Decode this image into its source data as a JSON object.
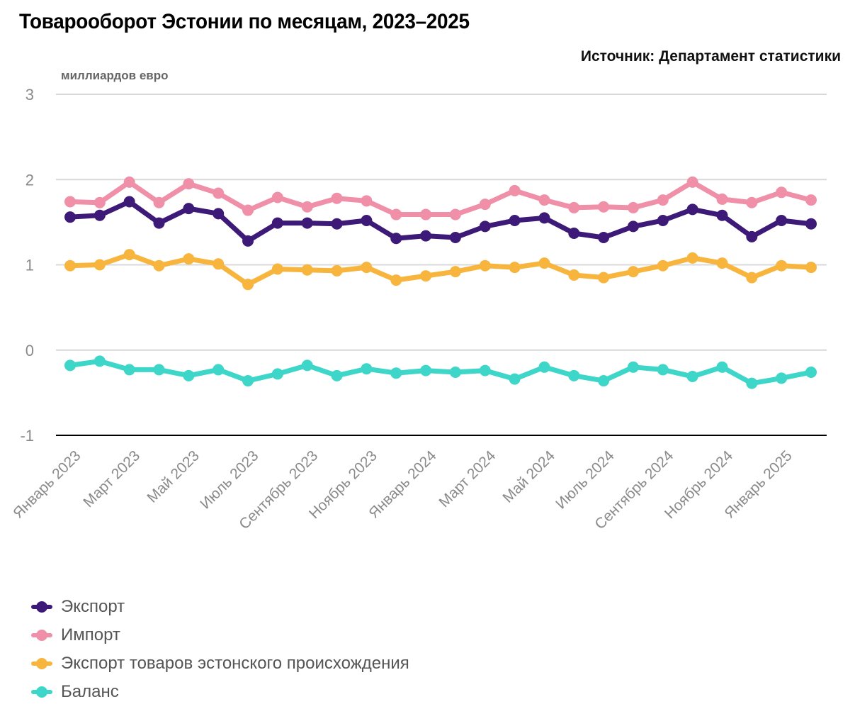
{
  "header": {
    "title": "Товарооборот Эстонии по месяцам, 2023–2025",
    "source": "Источник: Департамент статистики",
    "unit_label": "миллиардов евро"
  },
  "chart_data": {
    "type": "line",
    "title": "Товарооборот Эстонии по месяцам, 2023–2025",
    "subtitle": "Источник: Департамент статистики",
    "xlabel": "",
    "ylabel": "миллиардов евро",
    "ylim": [
      -1,
      3
    ],
    "yticks": [
      "3",
      "2",
      "1",
      "0",
      "-1"
    ],
    "ytick_values": [
      3,
      2,
      1,
      0,
      -1
    ],
    "grid": true,
    "legend_position": "bottom-left",
    "x": [
      "Январь 2023",
      "Февраль 2023",
      "Март 2023",
      "Апрель 2023",
      "Май 2023",
      "Июнь 2023",
      "Июль 2023",
      "Август 2023",
      "Сентябрь 2023",
      "Октябрь 2023",
      "Ноябрь 2023",
      "Декабрь 2023",
      "Январь 2024",
      "Февраль 2024",
      "Март 2024",
      "Апрель 2024",
      "Май 2024",
      "Июнь 2024",
      "Июль 2024",
      "Август 2024",
      "Сентябрь 2024",
      "Октябрь 2024",
      "Ноябрь 2024",
      "Декабрь 2024",
      "Январь 2025",
      "Февраль 2025"
    ],
    "xtick_labels": [
      {
        "index": 0,
        "label": "Январь 2023"
      },
      {
        "index": 2,
        "label": "Март 2023"
      },
      {
        "index": 4,
        "label": "Май 2023"
      },
      {
        "index": 6,
        "label": "Июль 2023"
      },
      {
        "index": 8,
        "label": "Сентябрь 2023"
      },
      {
        "index": 10,
        "label": "Ноябрь 2023"
      },
      {
        "index": 12,
        "label": "Январь 2024"
      },
      {
        "index": 14,
        "label": "Март 2024"
      },
      {
        "index": 16,
        "label": "Май 2024"
      },
      {
        "index": 18,
        "label": "Июль 2024"
      },
      {
        "index": 20,
        "label": "Сентябрь 2024"
      },
      {
        "index": 22,
        "label": "Ноябрь 2024"
      },
      {
        "index": 24,
        "label": "Январь 2025"
      }
    ],
    "series": [
      {
        "name": "Экспорт",
        "color": "#3d1a78",
        "values": [
          1.56,
          1.58,
          1.74,
          1.49,
          1.66,
          1.6,
          1.28,
          1.49,
          1.49,
          1.48,
          1.52,
          1.31,
          1.34,
          1.32,
          1.45,
          1.52,
          1.55,
          1.37,
          1.32,
          1.45,
          1.52,
          1.65,
          1.58,
          1.33,
          1.52,
          1.48
        ]
      },
      {
        "name": "Импорт",
        "color": "#f08fa8",
        "values": [
          1.74,
          1.73,
          1.97,
          1.73,
          1.95,
          1.84,
          1.64,
          1.79,
          1.68,
          1.78,
          1.75,
          1.59,
          1.59,
          1.59,
          1.71,
          1.87,
          1.76,
          1.67,
          1.68,
          1.67,
          1.76,
          1.97,
          1.77,
          1.73,
          1.85,
          1.76
        ]
      },
      {
        "name": "Экспорт товаров эстонского происхождения",
        "color": "#f8b53e",
        "values": [
          0.99,
          1.0,
          1.12,
          0.99,
          1.07,
          1.01,
          0.77,
          0.95,
          0.94,
          0.93,
          0.97,
          0.82,
          0.87,
          0.92,
          0.99,
          0.97,
          1.02,
          0.88,
          0.85,
          0.92,
          0.99,
          1.08,
          1.02,
          0.85,
          0.99,
          0.97
        ]
      },
      {
        "name": "Баланс",
        "color": "#3dd6c8",
        "values": [
          -0.18,
          -0.13,
          -0.23,
          -0.23,
          -0.3,
          -0.23,
          -0.36,
          -0.28,
          -0.18,
          -0.3,
          -0.22,
          -0.27,
          -0.24,
          -0.26,
          -0.24,
          -0.34,
          -0.2,
          -0.3,
          -0.36,
          -0.2,
          -0.23,
          -0.31,
          -0.2,
          -0.39,
          -0.33,
          -0.26
        ]
      }
    ]
  },
  "legend": {
    "items": [
      {
        "label": "Экспорт",
        "color": "#3d1a78"
      },
      {
        "label": "Импорт",
        "color": "#f08fa8"
      },
      {
        "label": "Экспорт товаров эстонского происхождения",
        "color": "#f8b53e"
      },
      {
        "label": "Баланс",
        "color": "#3dd6c8"
      }
    ]
  }
}
